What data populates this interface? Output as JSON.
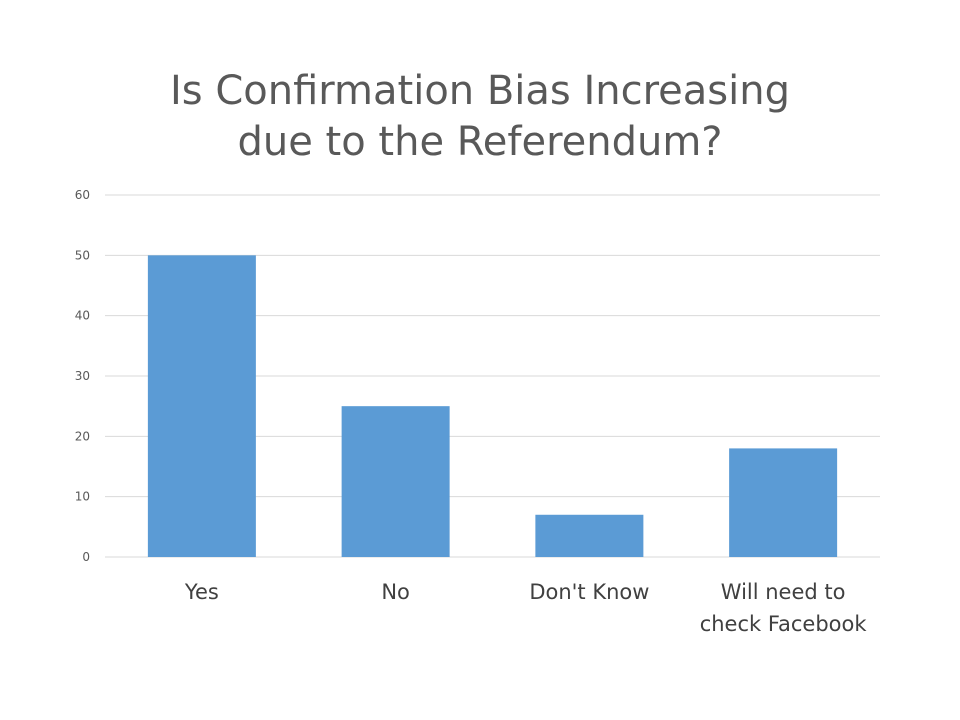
{
  "chart_data": {
    "type": "bar",
    "title_lines": [
      "Is Confirmation Bias Increasing",
      "due to the Referendum?"
    ],
    "categories": [
      [
        "Yes"
      ],
      [
        "No"
      ],
      [
        "Don't Know"
      ],
      [
        "Will need to",
        "check Facebook"
      ]
    ],
    "values": [
      50,
      25,
      7,
      18
    ],
    "ylim": [
      0,
      60
    ],
    "yticks": [
      0,
      10,
      20,
      30,
      40,
      50,
      60
    ],
    "xlabel": "",
    "ylabel": "",
    "grid": true,
    "legend": "none",
    "bar_color": "#5B9BD5",
    "grid_color": "#D9D9D9"
  }
}
